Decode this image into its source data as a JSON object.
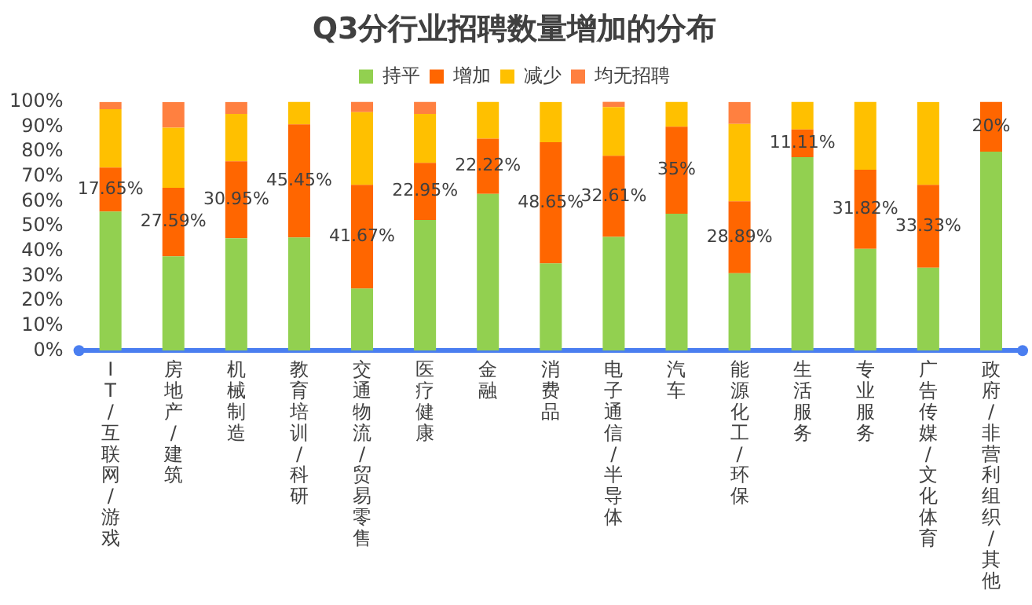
{
  "chart_data": {
    "type": "bar",
    "title": "Q3分行业招聘数量增加的分布",
    "stacked": true,
    "legend": "top",
    "grid": false,
    "categories": [
      "IT/互联网/游戏",
      "房地产/建筑",
      "机械制造",
      "教育培训/科研",
      "交通物流/贸易零售",
      "医疗健康",
      "金融",
      "消费品",
      "电子通信/半导体",
      "汽车",
      "能源化工/环保",
      "生活服务",
      "专业服务",
      "广告传媒/文化体育",
      "政府/非营利组织/其他"
    ],
    "ylim": [
      0,
      100
    ],
    "yticks": [
      {
        "value": 0,
        "label": "0%"
      },
      {
        "value": 10,
        "label": "10%"
      },
      {
        "value": 20,
        "label": "20%"
      },
      {
        "value": 30,
        "label": "30%"
      },
      {
        "value": 40,
        "label": "40%"
      },
      {
        "value": 50,
        "label": "50%"
      },
      {
        "value": 60,
        "label": "60%"
      },
      {
        "value": 70,
        "label": "70%"
      },
      {
        "value": 80,
        "label": "80%"
      },
      {
        "value": 90,
        "label": "90%"
      },
      {
        "value": 100,
        "label": "100%"
      }
    ],
    "series": [
      {
        "name": "持平",
        "color": "#92d050",
        "values": [
          55.9,
          37.9,
          45.2,
          45.5,
          25,
          52.5,
          63,
          35.1,
          45.7,
          55,
          31.1,
          77.8,
          40.9,
          33.3,
          80
        ]
      },
      {
        "name": "增加",
        "color": "#ff6600",
        "values": [
          17.65,
          27.59,
          30.95,
          45.45,
          41.67,
          22.95,
          22.22,
          48.65,
          32.61,
          35,
          28.89,
          11.11,
          31.82,
          33.33,
          20
        ],
        "value_labels": [
          "17.65%",
          "27.59%",
          "30.95%",
          "45.45%",
          "41.67%",
          "22.95%",
          "22.22%",
          "48.65%",
          "32.61%",
          "35%",
          "28.89%",
          "11.11%",
          "31.82%",
          "33.33%",
          "20%"
        ]
      },
      {
        "name": "减少",
        "color": "#ffc000",
        "values": [
          23.5,
          24.1,
          19,
          9.1,
          29.2,
          19.7,
          14.8,
          16.2,
          19.6,
          10,
          31.1,
          11.1,
          27.3,
          33.3,
          null
        ]
      },
      {
        "name": "均无招聘",
        "color": "#ff8040",
        "values": [
          2.9,
          10.3,
          4.8,
          null,
          4.2,
          4.9,
          null,
          null,
          2.2,
          null,
          8.9,
          null,
          null,
          null,
          null
        ]
      }
    ]
  }
}
